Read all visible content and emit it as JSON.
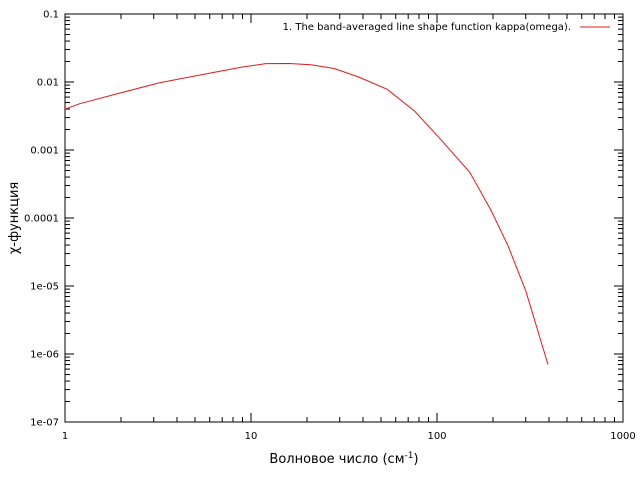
{
  "chart_data": {
    "type": "line",
    "xscale": "log",
    "yscale": "log",
    "xlim": [
      1,
      1000
    ],
    "ylim": [
      1e-07,
      0.1
    ],
    "xlabel": "Волновое число (см",
    "xlabel_sup": "-1",
    "xlabel_close": ")",
    "ylabel": "χ-функция",
    "x_ticks": [
      {
        "value": 1,
        "label": "1"
      },
      {
        "value": 10,
        "label": "10"
      },
      {
        "value": 100,
        "label": "100"
      },
      {
        "value": 1000,
        "label": "1000"
      }
    ],
    "y_ticks": [
      {
        "value": 1e-07,
        "label": "1e-07"
      },
      {
        "value": 1e-06,
        "label": "1e-06"
      },
      {
        "value": 1e-05,
        "label": "1e-05"
      },
      {
        "value": 0.0001,
        "label": "0.0001"
      },
      {
        "value": 0.001,
        "label": "0.001"
      },
      {
        "value": 0.01,
        "label": "0.01"
      },
      {
        "value": 0.1,
        "label": "0.1"
      }
    ],
    "grid": false,
    "legend_position": "top-right",
    "series": [
      {
        "name": "1. The band-averaged line shape function kappa(omega).",
        "color": "#e41a1c",
        "x": [
          1,
          1.2,
          1.9,
          3.2,
          5.5,
          9,
          12,
          16,
          21,
          28,
          38,
          54,
          76,
          103,
          150,
          195,
          240,
          300,
          395
        ],
        "y": [
          0.004,
          0.0048,
          0.0067,
          0.0097,
          0.0129,
          0.0166,
          0.0186,
          0.0187,
          0.0179,
          0.0158,
          0.0118,
          0.0078,
          0.0037,
          0.0015,
          0.00047,
          0.00013,
          4e-05,
          8.5e-06,
          7e-07
        ]
      }
    ]
  }
}
